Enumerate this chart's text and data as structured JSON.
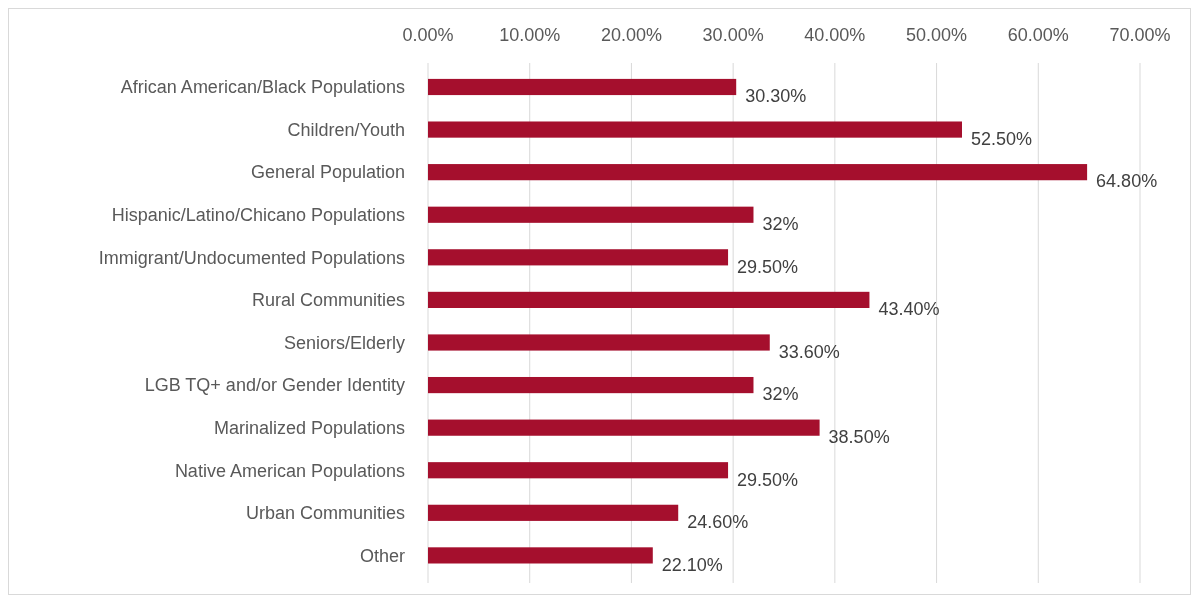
{
  "chart_data": {
    "type": "bar",
    "orientation": "horizontal",
    "categories": [
      "African American/Black Populations",
      "Children/Youth",
      "General Population",
      "Hispanic/Latino/Chicano Populations",
      "Immigrant/Undocumented Populations",
      "Rural Communities",
      "Seniors/Elderly",
      "LGB TQ+ and/or Gender Identity",
      "Marinalized Populations",
      "Native American Populations",
      "Urban Communities",
      "Other"
    ],
    "values": [
      30.3,
      52.5,
      64.8,
      32,
      29.5,
      43.4,
      33.6,
      32,
      38.5,
      29.5,
      24.6,
      22.1
    ],
    "value_labels": [
      "30.30%",
      "52.50%",
      "64.80%",
      "32%",
      "29.50%",
      "43.40%",
      "33.60%",
      "32%",
      "38.50%",
      "29.50%",
      "24.60%",
      "22.10%"
    ],
    "color": "#a50f2d",
    "xlim": [
      0,
      70
    ],
    "xticks": [
      {
        "value": 0,
        "label": "0.00%"
      },
      {
        "value": 10,
        "label": "10.00%"
      },
      {
        "value": 20,
        "label": "20.00%"
      },
      {
        "value": 30,
        "label": "30.00%"
      },
      {
        "value": 40,
        "label": "40.00%"
      },
      {
        "value": 50,
        "label": "50.00%"
      },
      {
        "value": 60,
        "label": "60.00%"
      },
      {
        "value": 70,
        "label": "70.00%"
      }
    ],
    "grid": "x"
  }
}
